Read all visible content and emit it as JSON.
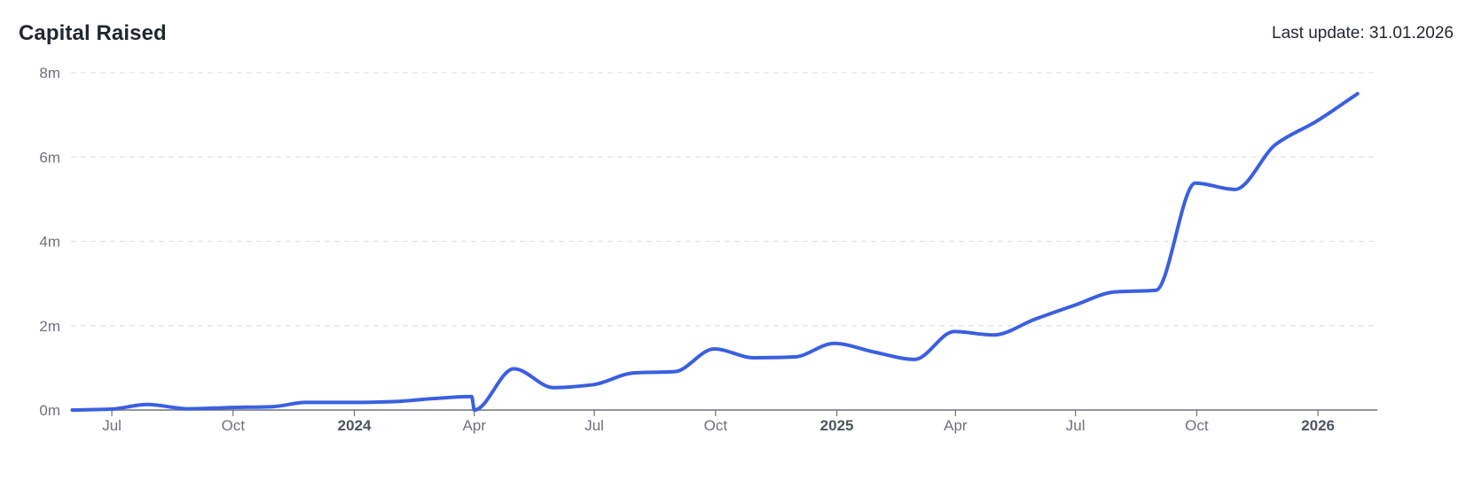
{
  "header": {
    "title": "Capital Raised",
    "last_update_label": "Last update:",
    "last_update_value": "31.01.2026"
  },
  "colors": {
    "line": "#3b5fe0",
    "grid": "#dde3ee",
    "axis": "#6b7280"
  },
  "chart_data": {
    "type": "line",
    "title": "Capital Raised",
    "xlabel": "",
    "ylabel": "",
    "x_axis_type": "date",
    "xlim": [
      "2023-05-31",
      "2026-02-15"
    ],
    "ylim": [
      0,
      8000000
    ],
    "y_ticks": [
      {
        "value": 0,
        "label": "0m"
      },
      {
        "value": 2000000,
        "label": "2m"
      },
      {
        "value": 4000000,
        "label": "4m"
      },
      {
        "value": 6000000,
        "label": "6m"
      },
      {
        "value": 8000000,
        "label": "8m"
      }
    ],
    "x_ticks": [
      {
        "date": "2023-07-01",
        "label": "Jul",
        "bold": false
      },
      {
        "date": "2023-10-01",
        "label": "Oct",
        "bold": false
      },
      {
        "date": "2024-01-01",
        "label": "2024",
        "bold": true
      },
      {
        "date": "2024-04-01",
        "label": "Apr",
        "bold": false
      },
      {
        "date": "2024-07-01",
        "label": "Jul",
        "bold": false
      },
      {
        "date": "2024-10-01",
        "label": "Oct",
        "bold": false
      },
      {
        "date": "2025-01-01",
        "label": "2025",
        "bold": true
      },
      {
        "date": "2025-04-01",
        "label": "Apr",
        "bold": false
      },
      {
        "date": "2025-07-01",
        "label": "Jul",
        "bold": false
      },
      {
        "date": "2025-10-01",
        "label": "Oct",
        "bold": false
      },
      {
        "date": "2026-01-01",
        "label": "2026",
        "bold": true
      }
    ],
    "grid": true,
    "legend": "none",
    "series": [
      {
        "points": [
          [
            "2023-06-01",
            0
          ],
          [
            "2023-06-30",
            20000
          ],
          [
            "2023-07-28",
            130000
          ],
          [
            "2023-08-28",
            30000
          ],
          [
            "2023-09-30",
            60000
          ],
          [
            "2023-10-31",
            80000
          ],
          [
            "2023-11-25",
            180000
          ],
          [
            "2023-12-30",
            180000
          ],
          [
            "2024-01-31",
            200000
          ],
          [
            "2024-02-29",
            270000
          ],
          [
            "2024-03-30",
            320000
          ],
          [
            "2024-04-01",
            0
          ],
          [
            "2024-05-01",
            980000
          ],
          [
            "2024-05-31",
            530000
          ],
          [
            "2024-06-30",
            600000
          ],
          [
            "2024-07-31",
            880000
          ],
          [
            "2024-08-31",
            910000
          ],
          [
            "2024-09-30",
            1450000
          ],
          [
            "2024-10-30",
            1240000
          ],
          [
            "2024-11-30",
            1260000
          ],
          [
            "2024-12-30",
            1580000
          ],
          [
            "2025-01-30",
            1370000
          ],
          [
            "2025-03-01",
            1200000
          ],
          [
            "2025-03-31",
            1860000
          ],
          [
            "2025-04-30",
            1780000
          ],
          [
            "2025-05-31",
            2150000
          ],
          [
            "2025-06-30",
            2480000
          ],
          [
            "2025-07-31",
            2800000
          ],
          [
            "2025-08-31",
            2840000
          ],
          [
            "2025-09-30",
            5380000
          ],
          [
            "2025-10-30",
            5230000
          ],
          [
            "2025-11-30",
            6300000
          ],
          [
            "2025-12-31",
            6850000
          ],
          [
            "2026-01-31",
            7500000
          ]
        ]
      }
    ]
  }
}
